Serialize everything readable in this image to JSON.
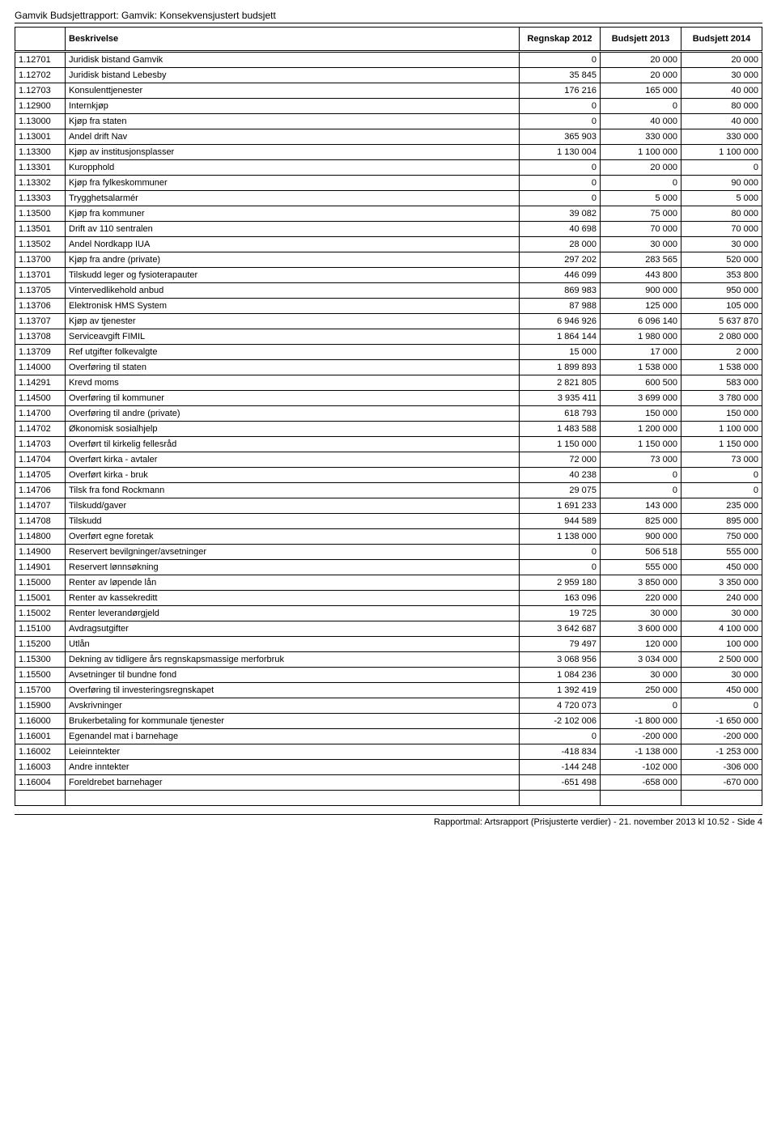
{
  "report_title": "Gamvik Budsjettrapport: Gamvik: Konsekvensjustert budsjett",
  "columns": {
    "code": "",
    "desc": "Beskrivelse",
    "c1": "Regnskap 2012",
    "c2": "Budsjett 2013",
    "c3": "Budsjett 2014"
  },
  "rows": [
    {
      "code": "1.12701",
      "desc": "Juridisk bistand Gamvik",
      "c1": "0",
      "c2": "20 000",
      "c3": "20 000"
    },
    {
      "code": "1.12702",
      "desc": "Juridisk bistand Lebesby",
      "c1": "35 845",
      "c2": "20 000",
      "c3": "30 000"
    },
    {
      "code": "1.12703",
      "desc": "Konsulenttjenester",
      "c1": "176 216",
      "c2": "165 000",
      "c3": "40 000"
    },
    {
      "code": "1.12900",
      "desc": "Internkjøp",
      "c1": "0",
      "c2": "0",
      "c3": "80 000"
    },
    {
      "code": "1.13000",
      "desc": "Kjøp fra staten",
      "c1": "0",
      "c2": "40 000",
      "c3": "40 000"
    },
    {
      "code": "1.13001",
      "desc": "Andel drift Nav",
      "c1": "365 903",
      "c2": "330 000",
      "c3": "330 000"
    },
    {
      "code": "1.13300",
      "desc": "Kjøp av institusjonsplasser",
      "c1": "1 130 004",
      "c2": "1 100 000",
      "c3": "1 100 000"
    },
    {
      "code": "1.13301",
      "desc": "Kuropphold",
      "c1": "0",
      "c2": "20 000",
      "c3": "0"
    },
    {
      "code": "1.13302",
      "desc": "Kjøp fra fylkeskommuner",
      "c1": "0",
      "c2": "0",
      "c3": "90 000"
    },
    {
      "code": "1.13303",
      "desc": "Trygghetsalarmér",
      "c1": "0",
      "c2": "5 000",
      "c3": "5 000"
    },
    {
      "code": "1.13500",
      "desc": "Kjøp fra kommuner",
      "c1": "39 082",
      "c2": "75 000",
      "c3": "80 000"
    },
    {
      "code": "1.13501",
      "desc": "Drift av 110 sentralen",
      "c1": "40 698",
      "c2": "70 000",
      "c3": "70 000"
    },
    {
      "code": "1.13502",
      "desc": "Andel Nordkapp IUA",
      "c1": "28 000",
      "c2": "30 000",
      "c3": "30 000"
    },
    {
      "code": "1.13700",
      "desc": "Kjøp fra andre (private)",
      "c1": "297 202",
      "c2": "283 565",
      "c3": "520 000"
    },
    {
      "code": "1.13701",
      "desc": "Tilskudd leger og fysioterapauter",
      "c1": "446 099",
      "c2": "443 800",
      "c3": "353 800"
    },
    {
      "code": "1.13705",
      "desc": "Vintervedlikehold anbud",
      "c1": "869 983",
      "c2": "900 000",
      "c3": "950 000"
    },
    {
      "code": "1.13706",
      "desc": "Elektronisk HMS System",
      "c1": "87 988",
      "c2": "125 000",
      "c3": "105 000"
    },
    {
      "code": "1.13707",
      "desc": "Kjøp av tjenester",
      "c1": "6 946 926",
      "c2": "6 096 140",
      "c3": "5 637 870"
    },
    {
      "code": "1.13708",
      "desc": "Serviceavgift FIMIL",
      "c1": "1 864 144",
      "c2": "1 980 000",
      "c3": "2 080 000"
    },
    {
      "code": "1.13709",
      "desc": "Ref utgifter folkevalgte",
      "c1": "15 000",
      "c2": "17 000",
      "c3": "2 000"
    },
    {
      "code": "1.14000",
      "desc": "Overføring til staten",
      "c1": "1 899 893",
      "c2": "1 538 000",
      "c3": "1 538 000"
    },
    {
      "code": "1.14291",
      "desc": "Krevd moms",
      "c1": "2 821 805",
      "c2": "600 500",
      "c3": "583 000"
    },
    {
      "code": "1.14500",
      "desc": "Overføring til kommuner",
      "c1": "3 935 411",
      "c2": "3 699 000",
      "c3": "3 780 000"
    },
    {
      "code": "1.14700",
      "desc": "Overføring til andre (private)",
      "c1": "618 793",
      "c2": "150 000",
      "c3": "150 000"
    },
    {
      "code": "1.14702",
      "desc": "Økonomisk sosialhjelp",
      "c1": "1 483 588",
      "c2": "1 200 000",
      "c3": "1 100 000"
    },
    {
      "code": "1.14703",
      "desc": "Overført til kirkelig fellesråd",
      "c1": "1 150 000",
      "c2": "1 150 000",
      "c3": "1 150 000"
    },
    {
      "code": "1.14704",
      "desc": "Overført kirka - avtaler",
      "c1": "72 000",
      "c2": "73 000",
      "c3": "73 000"
    },
    {
      "code": "1.14705",
      "desc": "Overført kirka - bruk",
      "c1": "40 238",
      "c2": "0",
      "c3": "0"
    },
    {
      "code": "1.14706",
      "desc": "Tilsk fra fond Rockmann",
      "c1": "29 075",
      "c2": "0",
      "c3": "0"
    },
    {
      "code": "1.14707",
      "desc": "Tilskudd/gaver",
      "c1": "1 691 233",
      "c2": "143 000",
      "c3": "235 000"
    },
    {
      "code": "1.14708",
      "desc": "Tilskudd",
      "c1": "944 589",
      "c2": "825 000",
      "c3": "895 000"
    },
    {
      "code": "1.14800",
      "desc": "Overført egne foretak",
      "c1": "1 138 000",
      "c2": "900 000",
      "c3": "750 000"
    },
    {
      "code": "1.14900",
      "desc": "Reservert bevilgninger/avsetninger",
      "c1": "0",
      "c2": "506 518",
      "c3": "555 000"
    },
    {
      "code": "1.14901",
      "desc": "Reservert lønnsøkning",
      "c1": "0",
      "c2": "555 000",
      "c3": "450 000"
    },
    {
      "code": "1.15000",
      "desc": "Renter av løpende lån",
      "c1": "2 959 180",
      "c2": "3 850 000",
      "c3": "3 350 000"
    },
    {
      "code": "1.15001",
      "desc": "Renter av kassekreditt",
      "c1": "163 096",
      "c2": "220 000",
      "c3": "240 000"
    },
    {
      "code": "1.15002",
      "desc": "Renter leverandørgjeld",
      "c1": "19 725",
      "c2": "30 000",
      "c3": "30 000"
    },
    {
      "code": "1.15100",
      "desc": "Avdragsutgifter",
      "c1": "3 642 687",
      "c2": "3 600 000",
      "c3": "4 100 000"
    },
    {
      "code": "1.15200",
      "desc": "Utlån",
      "c1": "79 497",
      "c2": "120 000",
      "c3": "100 000"
    },
    {
      "code": "1.15300",
      "desc": "Dekning av tidligere års regnskapsmassige merforbruk",
      "c1": "3 068 956",
      "c2": "3 034 000",
      "c3": "2 500 000"
    },
    {
      "code": "1.15500",
      "desc": "Avsetninger til bundne fond",
      "c1": "1 084 236",
      "c2": "30 000",
      "c3": "30 000"
    },
    {
      "code": "1.15700",
      "desc": "Overføring til investeringsregnskapet",
      "c1": "1 392 419",
      "c2": "250 000",
      "c3": "450 000"
    },
    {
      "code": "1.15900",
      "desc": "Avskrivninger",
      "c1": "4 720 073",
      "c2": "0",
      "c3": "0"
    },
    {
      "code": "1.16000",
      "desc": "Brukerbetaling for kommunale tjenester",
      "c1": "-2 102 006",
      "c2": "-1 800 000",
      "c3": "-1 650 000"
    },
    {
      "code": "1.16001",
      "desc": "Egenandel mat i barnehage",
      "c1": "0",
      "c2": "-200 000",
      "c3": "-200 000"
    },
    {
      "code": "1.16002",
      "desc": "Leieinntekter",
      "c1": "-418 834",
      "c2": "-1 138 000",
      "c3": "-1 253 000"
    },
    {
      "code": "1.16003",
      "desc": "Andre inntekter",
      "c1": "-144 248",
      "c2": "-102 000",
      "c3": "-306 000"
    },
    {
      "code": "1.16004",
      "desc": "Foreldrebet barnehager",
      "c1": "-651 498",
      "c2": "-658 000",
      "c3": "-670 000"
    }
  ],
  "footer_text": "Rapportmal: Artsrapport (Prisjusterte verdier) - 21. november 2013 kl 10.52 - Side 4"
}
